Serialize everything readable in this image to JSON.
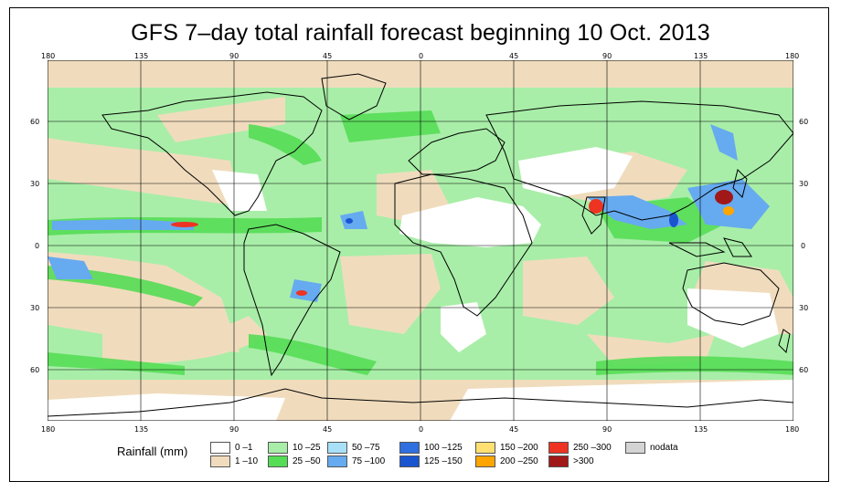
{
  "title": "GFS 7–day total rainfall forecast beginning 10 Oct. 2013",
  "axes": {
    "lon_ticks": [
      "180",
      "135",
      "90",
      "45",
      "0",
      "45",
      "90",
      "135",
      "180"
    ],
    "lat_ticks": [
      "60",
      "30",
      "0",
      "30",
      "60"
    ]
  },
  "legend": {
    "title": "Rainfall (mm)",
    "items": [
      {
        "label": "0 –1",
        "color": "#ffffff"
      },
      {
        "label": "1 –10",
        "color": "#f0dcbd"
      },
      {
        "label": "10 –25",
        "color": "#a8eea8"
      },
      {
        "label": "25 –50",
        "color": "#55dd55"
      },
      {
        "label": "50 –75",
        "color": "#a8e0f8"
      },
      {
        "label": "75 –100",
        "color": "#66aaf0"
      },
      {
        "label": "100 –125",
        "color": "#2f6fe0"
      },
      {
        "label": "125 –150",
        "color": "#1a55d0"
      },
      {
        "label": "150 –200",
        "color": "#ffe070"
      },
      {
        "label": "200 –250",
        "color": "#ffa500"
      },
      {
        "label": "250 –300",
        "color": "#ee3322"
      },
      {
        "label": ">300",
        "color": "#a01818"
      },
      {
        "label": "nodata",
        "color": "#d4d4d4"
      }
    ]
  }
}
